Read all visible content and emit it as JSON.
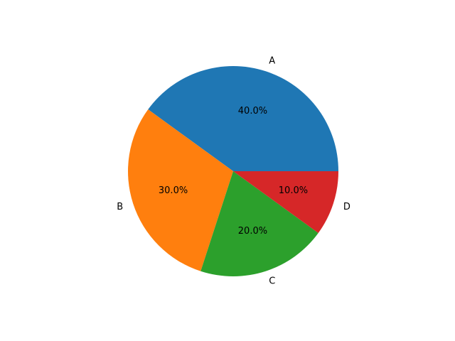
{
  "chart_data": {
    "type": "pie",
    "title": "",
    "categories": [
      "A",
      "B",
      "C",
      "D"
    ],
    "values": [
      40,
      30,
      20,
      10
    ],
    "pct_labels": [
      "40.0%",
      "30.0%",
      "20.0%",
      "10.0%"
    ],
    "colors": [
      "#1f77b4",
      "#ff7f0e",
      "#2ca02c",
      "#d62728"
    ],
    "start_angle_deg": 0,
    "direction": "counterclockwise",
    "legend": "none"
  }
}
